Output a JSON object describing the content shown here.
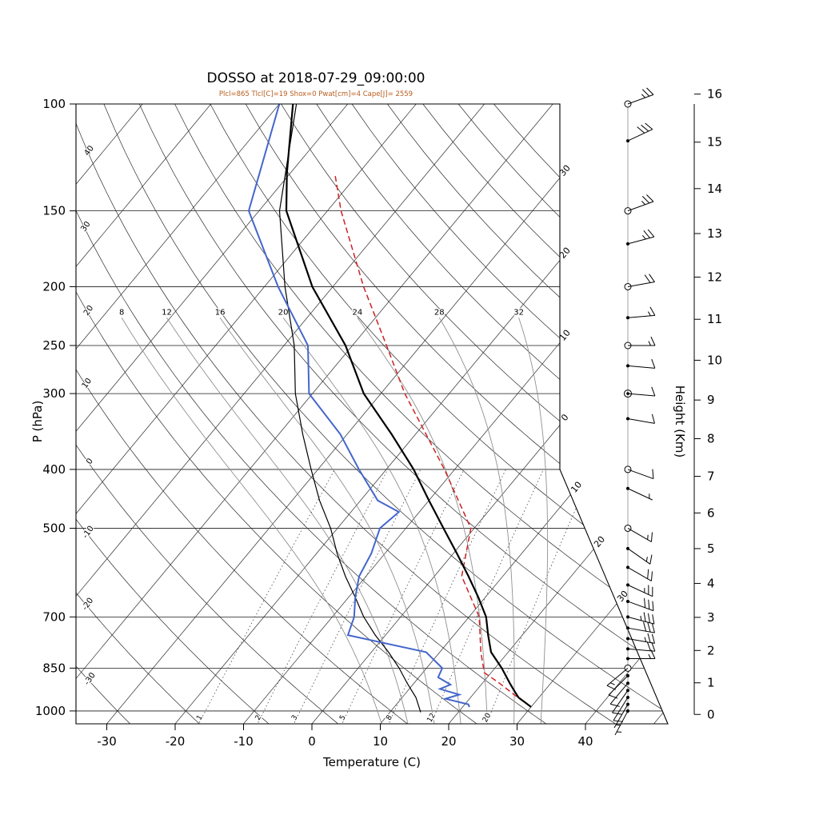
{
  "title": "DOSSO at 2018-07-29_09:00:00",
  "subtitle": "Plcl=865 Tlcl[C]=19 Shox=0 Pwat[cm]=4 Cape[J]= 2559",
  "colors": {
    "temperature": "#000000",
    "wetbulb": "#000000",
    "dewpoint": "#4466cc",
    "parcel": "#cc2222",
    "subtitle": "#b85c1e",
    "isotherm": "#2a2a2a",
    "dry_adiabat": "#2a2a2a",
    "moist_adiabat": "#909090",
    "mixing_ratio": "#444444"
  },
  "axes": {
    "pressure_label": "P (hPa)",
    "pressure_ticks": [
      100,
      150,
      200,
      250,
      300,
      400,
      500,
      700,
      850,
      1000
    ],
    "temp_label": "Temperature (C)",
    "temp_ticks": [
      -30,
      -20,
      -10,
      0,
      10,
      20,
      30,
      40
    ],
    "height_label": "Height (Km)",
    "height_ticks": [
      0,
      1,
      2,
      3,
      4,
      5,
      6,
      7,
      8,
      9,
      10,
      11,
      12,
      13,
      14,
      15,
      16
    ]
  },
  "background": {
    "isotherm_step": 10,
    "isotherm_min": -110,
    "isotherm_max": 50,
    "isotherm_edge_labels_vertical": [
      -30,
      -20,
      -10,
      0
    ],
    "isotherm_edge_labels_diagonal": [
      10,
      20,
      30
    ],
    "dry_adiabat_min": -30,
    "dry_adiabat_max": 160,
    "dry_adiabat_step": 10,
    "moist_adiabat_values": [
      8,
      12,
      16,
      20,
      24,
      28,
      32
    ],
    "moist_adiabat_label_pressure": 225,
    "mixing_ratio_values": [
      1,
      2,
      3,
      5,
      8,
      12,
      20
    ]
  },
  "chart_data": {
    "type": "line",
    "subtype": "skewt-logp-sounding",
    "station": "DOSSO",
    "datetime": "2018-07-29_09:00:00",
    "indices": {
      "plcl_hpa": 865,
      "tlcl_c": 19,
      "showalter": 0,
      "pwat_cm": 4,
      "cape_j": 2559
    },
    "pressure_range_hpa": [
      100,
      1050
    ],
    "temp_range_c": [
      -30,
      40
    ],
    "series": [
      {
        "name": "temperature",
        "pressure_hpa": [
          985,
          950,
          925,
          900,
          850,
          800,
          750,
          700,
          650,
          600,
          550,
          500,
          450,
          400,
          350,
          300,
          250,
          200,
          150,
          130,
          100
        ],
        "temp_c": [
          30,
          27,
          25.5,
          24,
          21,
          17.5,
          15,
          12.5,
          9,
          5,
          0.5,
          -4.5,
          -10,
          -16,
          -23.5,
          -32.5,
          -41,
          -53,
          -66,
          -70.5,
          -78
        ]
      },
      {
        "name": "wetbulb",
        "pressure_hpa": [
          1005,
          950,
          900,
          850,
          800,
          750,
          700,
          650,
          600,
          550,
          500,
          450,
          400,
          350,
          300,
          250,
          200,
          150,
          100
        ],
        "temp_c": [
          14.5,
          12,
          9,
          6,
          2.5,
          -1.5,
          -5.4,
          -9,
          -13,
          -17,
          -21,
          -26,
          -31,
          -36.5,
          -42.5,
          -48.5,
          -57,
          -67,
          -77.5
        ]
      },
      {
        "name": "dewpoint",
        "pressure_hpa": [
          985,
          975,
          955,
          940,
          920,
          905,
          880,
          850,
          800,
          750,
          700,
          650,
          600,
          550,
          500,
          470,
          450,
          400,
          350,
          300,
          250,
          200,
          150,
          100
        ],
        "temp_c": [
          21,
          20.5,
          16.5,
          18,
          14.5,
          15.5,
          12.8,
          12.3,
          8,
          -5.5,
          -6.8,
          -9,
          -11,
          -12,
          -13.8,
          -13,
          -17.5,
          -24,
          -31,
          -40.5,
          -46.5,
          -58,
          -71.5,
          -80
        ]
      },
      {
        "name": "parcel",
        "pressure_hpa": [
          985,
          950,
          900,
          865,
          800,
          700,
          600,
          500,
          400,
          300,
          250,
          200,
          150,
          130
        ],
        "temp_c": [
          30,
          26.9,
          22.5,
          19,
          16,
          11.5,
          4,
          -0.5,
          -11.5,
          -26.5,
          -35,
          -45.5,
          -58,
          -63.5
        ]
      }
    ],
    "wind_barbs": [
      {
        "p": 100,
        "speed_kt": 25,
        "dir_deg": 70,
        "symbol": "circle"
      },
      {
        "p": 115,
        "speed_kt": 30,
        "dir_deg": 65,
        "symbol": "dot"
      },
      {
        "p": 150,
        "speed_kt": 25,
        "dir_deg": 70,
        "symbol": "circle"
      },
      {
        "p": 170,
        "speed_kt": 25,
        "dir_deg": 75,
        "symbol": "dot"
      },
      {
        "p": 200,
        "speed_kt": 20,
        "dir_deg": 80,
        "symbol": "circle"
      },
      {
        "p": 225,
        "speed_kt": 15,
        "dir_deg": 85,
        "symbol": "dot"
      },
      {
        "p": 250,
        "speed_kt": 15,
        "dir_deg": 90,
        "symbol": "circle"
      },
      {
        "p": 270,
        "speed_kt": 10,
        "dir_deg": 95,
        "symbol": "dot"
      },
      {
        "p": 300,
        "speed_kt": 10,
        "dir_deg": 95,
        "symbol": "circledot"
      },
      {
        "p": 330,
        "speed_kt": 10,
        "dir_deg": 100,
        "symbol": "dot"
      },
      {
        "p": 400,
        "speed_kt": 10,
        "dir_deg": 110,
        "symbol": "circle"
      },
      {
        "p": 430,
        "speed_kt": 5,
        "dir_deg": 115,
        "symbol": "dot"
      },
      {
        "p": 500,
        "speed_kt": 15,
        "dir_deg": 120,
        "symbol": "circle"
      },
      {
        "p": 540,
        "speed_kt": 15,
        "dir_deg": 125,
        "symbol": "dot"
      },
      {
        "p": 580,
        "speed_kt": 20,
        "dir_deg": 120,
        "symbol": "dot"
      },
      {
        "p": 620,
        "speed_kt": 25,
        "dir_deg": 115,
        "symbol": "dot"
      },
      {
        "p": 660,
        "speed_kt": 30,
        "dir_deg": 110,
        "symbol": "dot"
      },
      {
        "p": 700,
        "speed_kt": 35,
        "dir_deg": 105,
        "symbol": "dot"
      },
      {
        "p": 730,
        "speed_kt": 30,
        "dir_deg": 100,
        "symbol": "dot"
      },
      {
        "p": 760,
        "speed_kt": 25,
        "dir_deg": 100,
        "symbol": "dot"
      },
      {
        "p": 790,
        "speed_kt": 20,
        "dir_deg": 95,
        "symbol": "dot"
      },
      {
        "p": 820,
        "speed_kt": 15,
        "dir_deg": 90,
        "symbol": "dot"
      },
      {
        "p": 850,
        "speed_kt": 15,
        "dir_deg": 230,
        "symbol": "circle"
      },
      {
        "p": 875,
        "speed_kt": 12,
        "dir_deg": 225,
        "symbol": "dot"
      },
      {
        "p": 900,
        "speed_kt": 10,
        "dir_deg": 220,
        "symbol": "dot"
      },
      {
        "p": 925,
        "speed_kt": 10,
        "dir_deg": 215,
        "symbol": "dot"
      },
      {
        "p": 950,
        "speed_kt": 8,
        "dir_deg": 212,
        "symbol": "dot"
      },
      {
        "p": 975,
        "speed_kt": 7,
        "dir_deg": 210,
        "symbol": "dot"
      },
      {
        "p": 1000,
        "speed_kt": 5,
        "dir_deg": 208,
        "symbol": "dot"
      }
    ]
  }
}
